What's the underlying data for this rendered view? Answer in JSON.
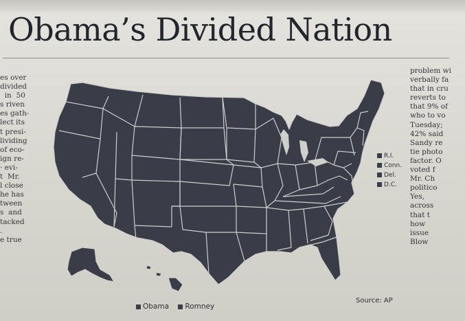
{
  "headline": "Obama’s Divided Nation",
  "left_column_fragments": [
    "es over",
    "divided",
    "  in  50",
    "s riven",
    "es gath-",
    "lect its",
    "t presi-",
    "lividing",
    "of eco-",
    "ign re-",
    "· evi-",
    "t  Mr.",
    "l close",
    "he has",
    "tween",
    "s  and",
    "tacked",
    ".",
    "e true"
  ],
  "right_column_fragments": [
    "problem wi",
    "verbally fa",
    "that in cru",
    "reverts to",
    "that 9% of",
    "who to vo",
    "Tuesday;",
    "42% said",
    "Sandy re",
    "tie photo",
    "factor. O",
    "voted f",
    "Mr. Ch",
    "politico",
    "Yes,",
    "across",
    "that t",
    "how",
    "issue",
    "Blow"
  ],
  "map": {
    "small_state_keys": [
      "R.I.",
      "Conn.",
      "Del.",
      "D.C."
    ],
    "legend": [
      "Obama",
      "Romney"
    ],
    "source": "Source: AP",
    "colors": {
      "obama": "#3a3c48",
      "romney": "#3a3c48",
      "border": "#cfcfcc"
    }
  }
}
